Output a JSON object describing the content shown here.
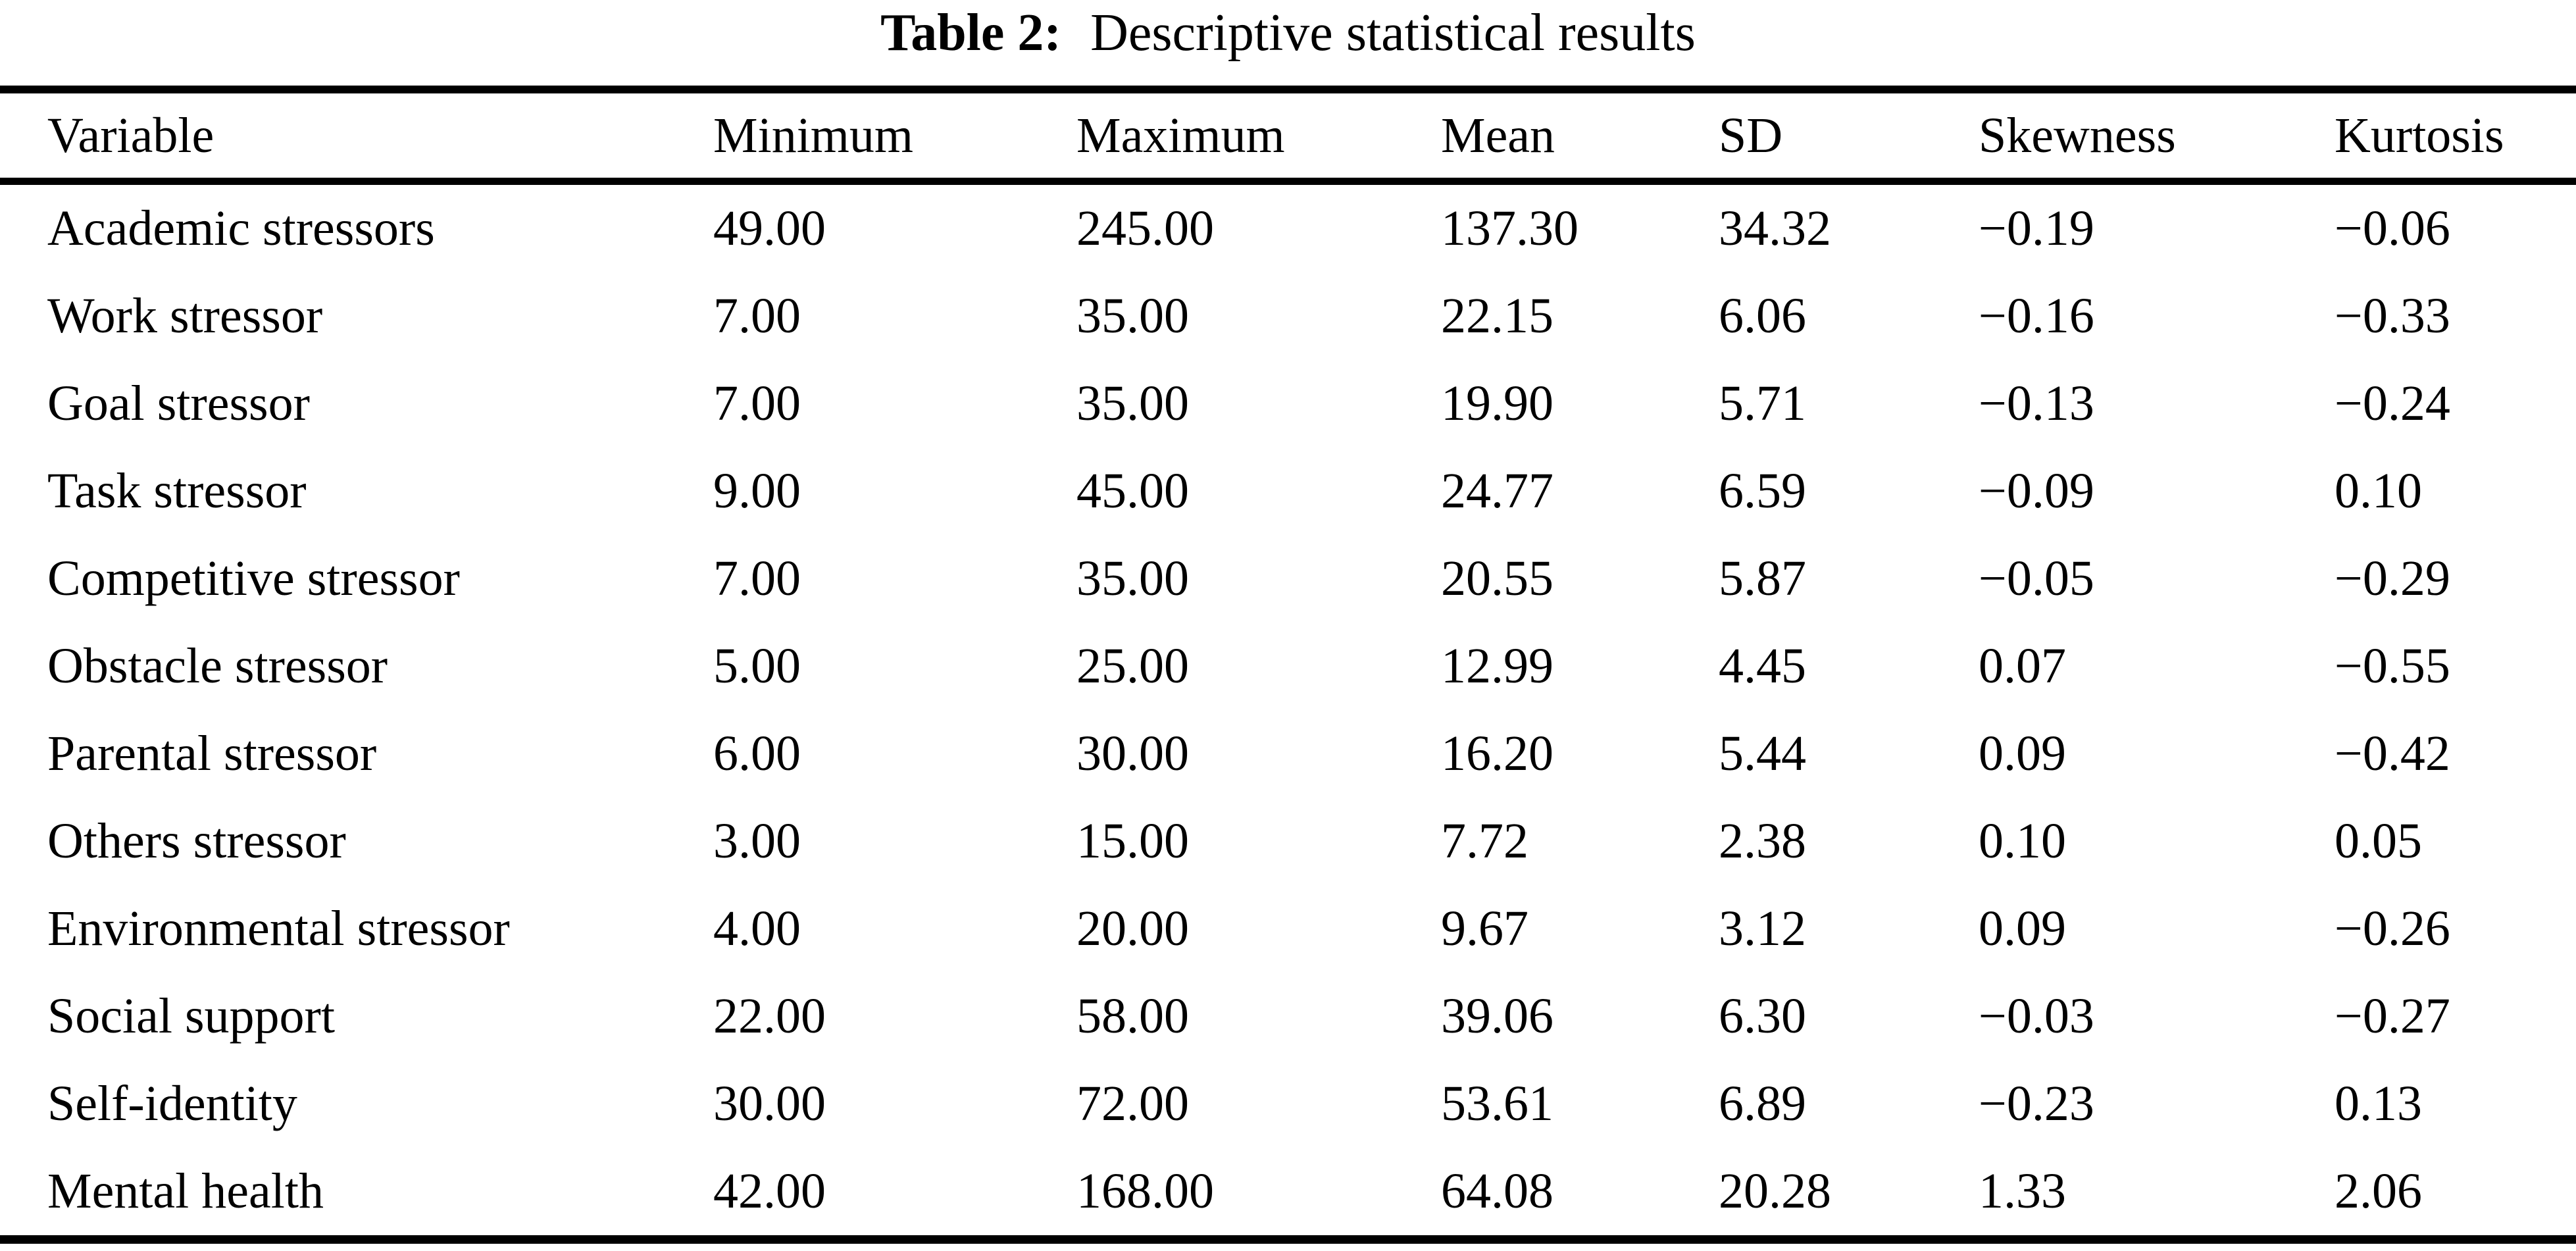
{
  "title": {
    "label": "Table 2:",
    "text": "Descriptive statistical results"
  },
  "colors": {
    "background": "#ffffff",
    "text": "#000000",
    "rule": "#000000"
  },
  "table": {
    "columns": [
      "Variable",
      "Minimum",
      "Maximum",
      "Mean",
      "SD",
      "Skewness",
      "Kurtosis"
    ],
    "rows": [
      [
        "Academic stressors",
        "49.00",
        "245.00",
        "137.30",
        "34.32",
        "−0.19",
        "−0.06"
      ],
      [
        "Work stressor",
        "7.00",
        "35.00",
        "22.15",
        "6.06",
        "−0.16",
        "−0.33"
      ],
      [
        "Goal stressor",
        "7.00",
        "35.00",
        "19.90",
        "5.71",
        "−0.13",
        "−0.24"
      ],
      [
        "Task stressor",
        "9.00",
        "45.00",
        "24.77",
        "6.59",
        "−0.09",
        "0.10"
      ],
      [
        "Competitive stressor",
        "7.00",
        "35.00",
        "20.55",
        "5.87",
        "−0.05",
        "−0.29"
      ],
      [
        "Obstacle stressor",
        "5.00",
        "25.00",
        "12.99",
        "4.45",
        "0.07",
        "−0.55"
      ],
      [
        "Parental stressor",
        "6.00",
        "30.00",
        "16.20",
        "5.44",
        "0.09",
        "−0.42"
      ],
      [
        "Others stressor",
        "3.00",
        "15.00",
        "7.72",
        "2.38",
        "0.10",
        "0.05"
      ],
      [
        "Environmental stressor",
        "4.00",
        "20.00",
        "9.67",
        "3.12",
        "0.09",
        "−0.26"
      ],
      [
        "Social support",
        "22.00",
        "58.00",
        "39.06",
        "6.30",
        "−0.03",
        "−0.27"
      ],
      [
        "Self-identity",
        "30.00",
        "72.00",
        "53.61",
        "6.89",
        "−0.23",
        "0.13"
      ],
      [
        "Mental health",
        "42.00",
        "168.00",
        "64.08",
        "20.28",
        "1.33",
        "2.06"
      ]
    ]
  }
}
